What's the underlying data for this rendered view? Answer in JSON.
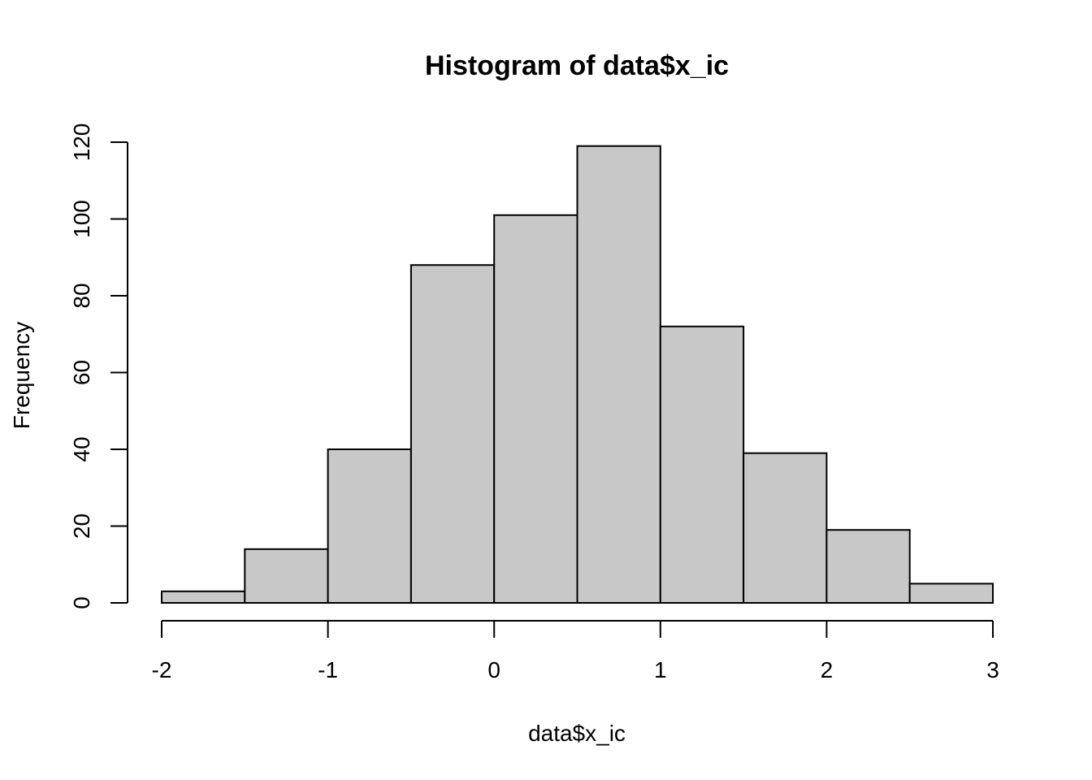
{
  "chart_data": {
    "type": "bar",
    "title": "Histogram of data$x_ic",
    "xlabel": "data$x_ic",
    "ylabel": "Frequency",
    "bin_edges": [
      -2,
      -1.5,
      -1,
      -0.5,
      0,
      0.5,
      1,
      1.5,
      2,
      2.5,
      3
    ],
    "values": [
      3,
      14,
      40,
      88,
      101,
      119,
      72,
      39,
      19,
      5
    ],
    "xlim": [
      -2,
      3
    ],
    "ylim": [
      0,
      120
    ],
    "x_ticks": [
      "-2",
      "-1",
      "0",
      "1",
      "2",
      "3"
    ],
    "y_ticks": [
      "0",
      "20",
      "40",
      "60",
      "80",
      "100",
      "120"
    ],
    "bar_color": "#c8c8c8",
    "grid": false,
    "legend": "none"
  }
}
